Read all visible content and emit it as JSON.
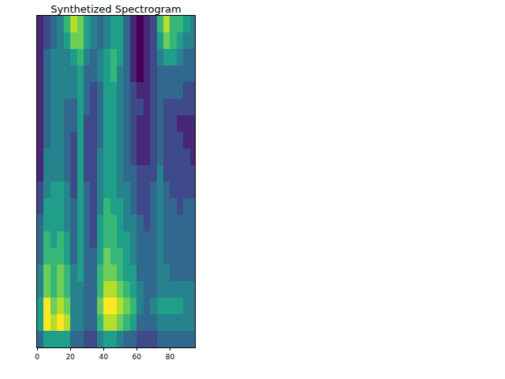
{
  "chart_data": {
    "type": "heatmap",
    "title": "Synthetized Spectrogram",
    "x": [
      2,
      6,
      10,
      14,
      18,
      22,
      26,
      30,
      34,
      38,
      42,
      46,
      50,
      54,
      58,
      62,
      66,
      70,
      74,
      78,
      82,
      86,
      90,
      94
    ],
    "y": [
      2,
      6,
      10,
      14,
      18,
      22,
      26,
      30,
      34,
      38,
      42,
      46,
      50,
      54,
      58,
      62,
      66,
      70,
      74,
      78
    ],
    "z": [
      [
        3,
        5,
        5,
        5,
        5,
        3,
        3,
        2,
        2,
        4,
        5,
        5,
        4,
        3,
        3,
        2,
        2,
        2,
        3,
        3,
        3,
        3,
        3,
        3
      ],
      [
        5,
        9,
        8,
        9,
        8,
        4,
        4,
        3,
        3,
        6,
        8,
        8,
        7,
        6,
        5,
        3,
        3,
        3,
        4,
        4,
        4,
        4,
        4,
        4
      ],
      [
        5,
        9,
        7,
        8,
        7,
        4,
        4,
        3,
        3,
        7,
        9,
        9,
        8,
        7,
        6,
        4,
        3,
        4,
        5,
        5,
        5,
        5,
        4,
        4
      ],
      [
        4,
        7,
        6,
        7,
        6,
        4,
        4,
        3,
        3,
        6,
        8,
        8,
        7,
        6,
        5,
        4,
        3,
        3,
        4,
        4,
        4,
        4,
        4,
        4
      ],
      [
        4,
        7,
        6,
        7,
        6,
        4,
        5,
        3,
        3,
        6,
        7,
        7,
        6,
        5,
        5,
        3,
        3,
        3,
        4,
        4,
        3,
        3,
        3,
        3
      ],
      [
        3,
        6,
        6,
        6,
        5,
        3,
        5,
        3,
        3,
        5,
        7,
        6,
        6,
        5,
        4,
        3,
        3,
        3,
        4,
        3,
        3,
        3,
        3,
        3
      ],
      [
        3,
        6,
        5,
        6,
        5,
        3,
        5,
        3,
        2,
        5,
        6,
        6,
        5,
        5,
        4,
        3,
        3,
        3,
        4,
        3,
        3,
        3,
        3,
        3
      ],
      [
        3,
        5,
        5,
        5,
        4,
        3,
        5,
        3,
        2,
        5,
        6,
        6,
        5,
        4,
        4,
        3,
        2,
        3,
        4,
        3,
        3,
        3,
        3,
        3
      ],
      [
        2,
        5,
        5,
        5,
        4,
        3,
        5,
        3,
        2,
        4,
        6,
        5,
        5,
        4,
        3,
        2,
        2,
        3,
        4,
        3,
        3,
        2,
        3,
        3
      ],
      [
        2,
        4,
        5,
        5,
        4,
        2,
        5,
        3,
        2,
        4,
        5,
        5,
        4,
        4,
        3,
        2,
        2,
        3,
        4,
        3,
        2,
        2,
        2,
        2
      ],
      [
        1,
        4,
        4,
        4,
        3,
        2,
        5,
        2,
        2,
        4,
        5,
        5,
        4,
        3,
        3,
        2,
        2,
        2,
        4,
        2,
        2,
        2,
        2,
        2
      ],
      [
        1,
        4,
        4,
        4,
        3,
        2,
        5,
        2,
        2,
        4,
        5,
        5,
        4,
        3,
        2,
        1,
        1,
        2,
        3,
        2,
        2,
        2,
        2,
        1
      ],
      [
        1,
        3,
        4,
        4,
        3,
        2,
        5,
        2,
        2,
        3,
        5,
        5,
        4,
        3,
        2,
        1,
        1,
        2,
        3,
        2,
        2,
        2,
        1,
        1
      ],
      [
        1,
        3,
        4,
        4,
        3,
        3,
        5,
        2,
        2,
        3,
        5,
        5,
        4,
        3,
        2,
        1,
        1,
        2,
        3,
        2,
        2,
        1,
        1,
        1
      ],
      [
        1,
        3,
        4,
        4,
        3,
        3,
        5,
        3,
        2,
        3,
        5,
        5,
        4,
        3,
        2,
        2,
        1,
        2,
        3,
        2,
        2,
        2,
        2,
        2
      ],
      [
        1,
        3,
        4,
        4,
        4,
        4,
        5,
        3,
        2,
        3,
        5,
        5,
        4,
        3,
        2,
        1,
        1,
        2,
        3,
        3,
        3,
        3,
        2,
        2
      ],
      [
        1,
        3,
        4,
        4,
        4,
        4,
        5,
        3,
        3,
        4,
        5,
        6,
        4,
        3,
        1,
        0,
        1,
        2,
        3,
        3,
        3,
        3,
        3,
        3
      ],
      [
        1,
        3,
        4,
        4,
        4,
        5,
        6,
        4,
        3,
        4,
        5,
        6,
        5,
        3,
        1,
        0,
        1,
        2,
        4,
        5,
        5,
        4,
        3,
        3
      ],
      [
        1,
        2,
        3,
        4,
        5,
        7,
        7,
        5,
        4,
        3,
        4,
        5,
        5,
        3,
        1,
        0,
        1,
        2,
        5,
        7,
        6,
        5,
        4,
        4
      ],
      [
        1,
        2,
        3,
        4,
        6,
        8,
        7,
        5,
        4,
        3,
        4,
        5,
        5,
        3,
        1,
        0,
        1,
        2,
        6,
        8,
        6,
        6,
        5,
        4
      ]
    ],
    "zlim": [
      0,
      9
    ],
    "color": "viridis",
    "xlim": [
      0,
      95
    ],
    "xticks": [
      0,
      20,
      40,
      60,
      80
    ],
    "ylim": [
      0,
      80
    ],
    "tick_labels": "x"
  }
}
